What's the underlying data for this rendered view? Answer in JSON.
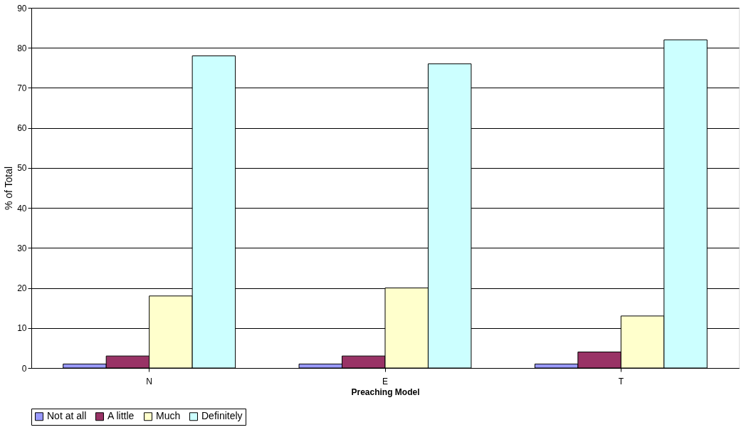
{
  "chart_data": {
    "type": "bar",
    "xlabel": "Preaching Model",
    "ylabel": "% of Total",
    "categories": [
      "N",
      "E",
      "T"
    ],
    "series": [
      {
        "name": "Not at all",
        "color": "#9999ff",
        "values": [
          1,
          1,
          1
        ]
      },
      {
        "name": "A little",
        "color": "#993366",
        "values": [
          3,
          3,
          4
        ]
      },
      {
        "name": "Much",
        "color": "#ffffcc",
        "values": [
          18,
          20,
          13
        ]
      },
      {
        "name": "Definitely",
        "color": "#ccffff",
        "values": [
          78,
          76,
          82
        ]
      }
    ],
    "ylim": [
      0,
      90
    ],
    "yticks": [
      0,
      10,
      20,
      30,
      40,
      50,
      60,
      70,
      80,
      90
    ],
    "grid": "y",
    "legend": "bottom"
  }
}
